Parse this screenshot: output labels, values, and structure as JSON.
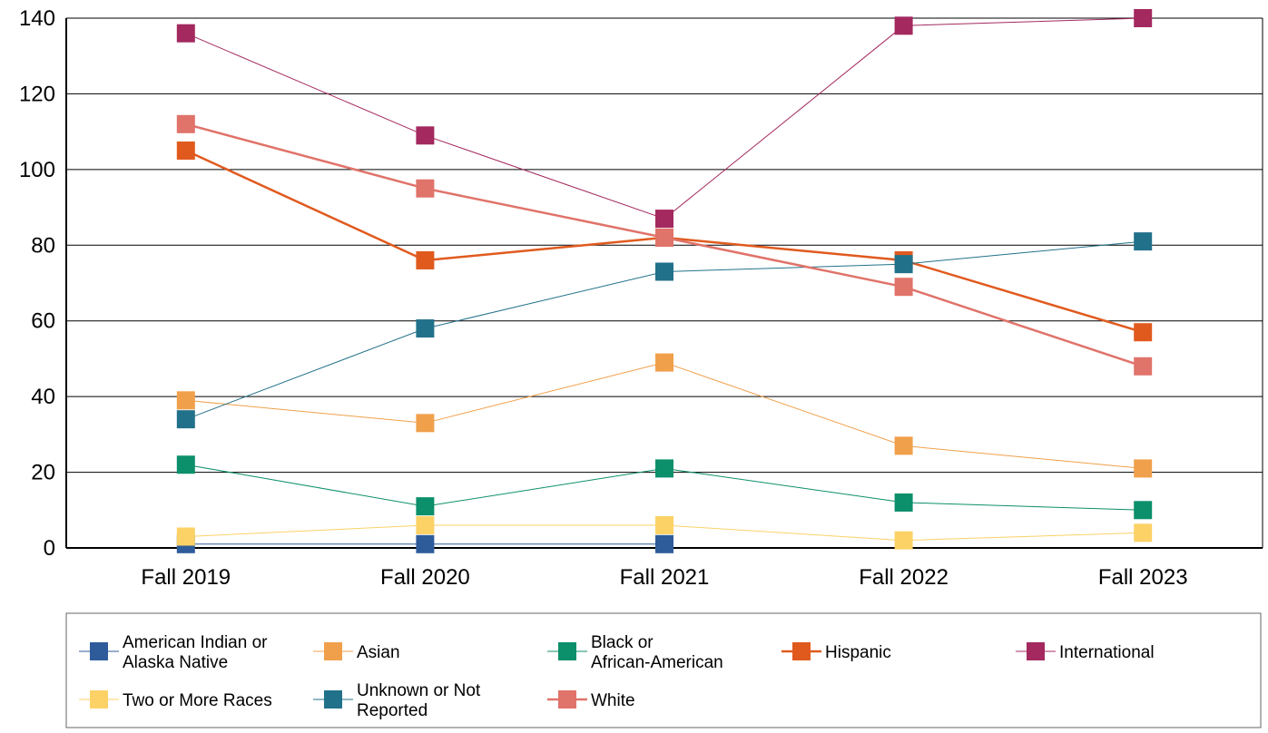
{
  "chart_data": {
    "type": "line",
    "title": "",
    "xlabel": "",
    "ylabel": "",
    "categories": [
      "Fall 2019",
      "Fall 2020",
      "Fall 2021",
      "Fall 2022",
      "Fall 2023"
    ],
    "ylim": [
      0,
      140
    ],
    "yticks": [
      0,
      20,
      40,
      60,
      80,
      100,
      120,
      140
    ],
    "grid": "horizontal",
    "legend_position": "bottom",
    "series": [
      {
        "name": "American Indian or Alaska Native",
        "lines": [
          "American Indian or",
          "Alaska Native"
        ],
        "color": "#2e5c9a",
        "thick": false,
        "values": [
          1,
          1,
          1,
          null,
          null
        ]
      },
      {
        "name": "Asian",
        "lines": [
          "Asian"
        ],
        "color": "#f0a04b",
        "thick": false,
        "values": [
          39,
          33,
          49,
          27,
          21
        ]
      },
      {
        "name": "Black or African-American",
        "lines": [
          "Black or",
          "African-American"
        ],
        "color": "#0c8f6b",
        "thick": false,
        "values": [
          22,
          11,
          21,
          12,
          10
        ]
      },
      {
        "name": "Hispanic",
        "lines": [
          "Hispanic"
        ],
        "color": "#e05a1e",
        "thick": true,
        "values": [
          105,
          76,
          82,
          76,
          57
        ]
      },
      {
        "name": "International",
        "lines": [
          "International"
        ],
        "color": "#a3295f",
        "thick": false,
        "values": [
          136,
          109,
          87,
          138,
          140
        ]
      },
      {
        "name": "Two or More Races",
        "lines": [
          "Two or More Races"
        ],
        "color": "#fcd267",
        "thick": false,
        "values": [
          3,
          6,
          6,
          2,
          4
        ]
      },
      {
        "name": "Unknown or Not Reported",
        "lines": [
          "Unknown or Not",
          "Reported"
        ],
        "color": "#22718a",
        "thick": false,
        "values": [
          34,
          58,
          73,
          75,
          81
        ]
      },
      {
        "name": "White",
        "lines": [
          "White"
        ],
        "color": "#e0736a",
        "thick": true,
        "values": [
          112,
          95,
          82,
          69,
          48
        ]
      }
    ]
  }
}
